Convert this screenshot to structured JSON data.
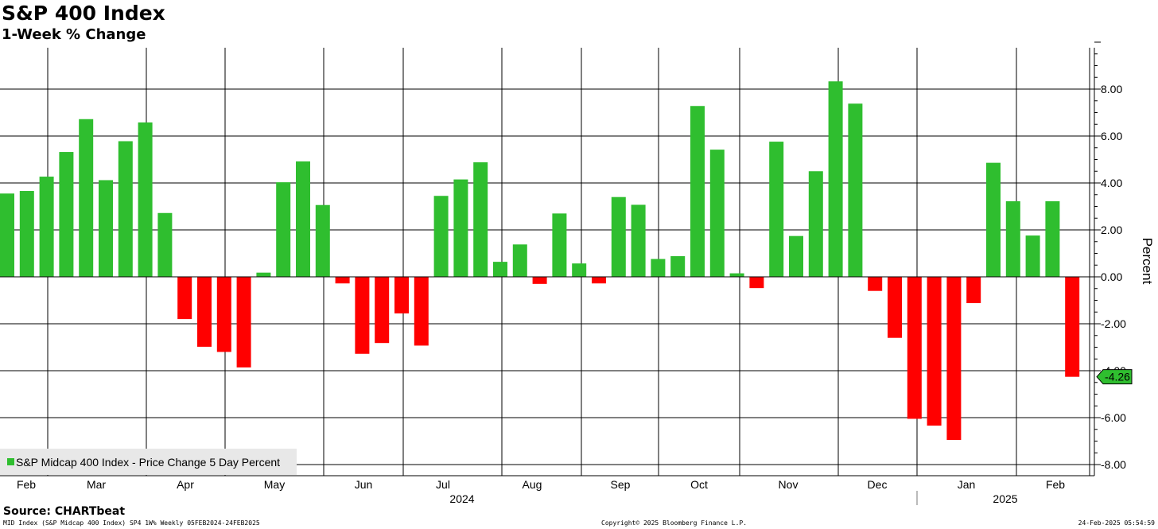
{
  "header": {
    "title": "S&P 400 Index",
    "subtitle": "1-Week % Change"
  },
  "footer": {
    "source": "Source: CHARTbeat",
    "ticker_info": "MID Index (S&P Midcap 400 Index) SP4 1W% Weekly 05FEB2024-24FEB2025",
    "copyright": "Copyright© 2025 Bloomberg Finance L.P.",
    "timestamp": "24-Feb-2025 05:54:59"
  },
  "colors": {
    "positive": "#2fbe2f",
    "negative": "#ff0000",
    "last_value_badge": "#2fbe2f"
  },
  "chart_data": {
    "type": "bar",
    "legend": {
      "label": "S&P Midcap 400 Index - Price Change 5 Day Percent",
      "placement": "bottom-left"
    },
    "ylabel": "Percent",
    "ylim": [
      -8.5,
      10.0
    ],
    "yticks": [
      8.0,
      6.0,
      4.0,
      2.0,
      0.0,
      -2.0,
      -4.0,
      -6.0,
      -8.0
    ],
    "ytick_labels": [
      "8.00",
      "6.00",
      "4.00",
      "2.00",
      "0.00",
      "-2.00",
      "-4.00",
      "-6.00",
      "-8.00"
    ],
    "last_value_label": "-4.26",
    "month_labels": [
      "Feb",
      "Mar",
      "Apr",
      "May",
      "Jun",
      "Jul",
      "Aug",
      "Sep",
      "Oct",
      "Nov",
      "Dec",
      "Jan",
      "Feb"
    ],
    "year_labels": [
      "2024",
      "2025"
    ],
    "grid": true,
    "values": [
      3.55,
      3.66,
      4.27,
      5.32,
      6.72,
      4.12,
      5.78,
      6.58,
      2.72,
      -1.8,
      -2.98,
      -3.2,
      -3.86,
      0.18,
      4.03,
      4.92,
      3.06,
      -0.28,
      -3.28,
      -2.82,
      -1.56,
      -2.93,
      3.45,
      4.15,
      4.88,
      0.64,
      1.38,
      -0.3,
      2.7,
      0.57,
      -0.28,
      3.4,
      3.07,
      0.76,
      0.88,
      7.28,
      5.42,
      0.15,
      -0.48,
      5.76,
      1.74,
      4.5,
      8.33,
      7.38,
      -0.6,
      -2.6,
      -6.05,
      -6.34,
      -6.95,
      -1.12,
      4.86,
      3.22,
      1.76,
      3.22,
      -4.26
    ]
  }
}
